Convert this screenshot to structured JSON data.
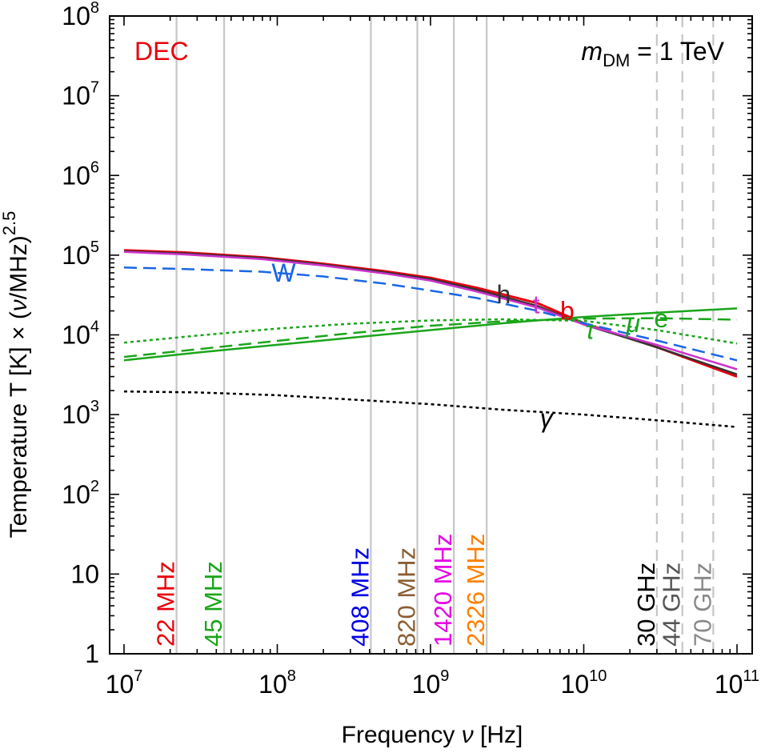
{
  "chart_data": {
    "type": "line",
    "xlabel": {
      "main": "Frequency ",
      "italic": "ν",
      "unit": " [Hz]"
    },
    "ylabel": {
      "prefix": "Temperature T [K] × (",
      "italic": "ν",
      "suffix": "/MHz)",
      "sup": "2.5"
    },
    "x_scale": "log",
    "y_scale": "log",
    "xlim": [
      10000000,
      100000000000
    ],
    "ylim": [
      1,
      100000000
    ],
    "x_ticks": [
      {
        "value": 10000000,
        "base": "10",
        "exp": "7"
      },
      {
        "value": 100000000,
        "base": "10",
        "exp": "8"
      },
      {
        "value": 1000000000,
        "base": "10",
        "exp": "9"
      },
      {
        "value": 10000000000,
        "base": "10",
        "exp": "10"
      },
      {
        "value": 100000000000,
        "base": "10",
        "exp": "11"
      }
    ],
    "y_ticks": [
      {
        "value": 1,
        "base": "1",
        "exp": ""
      },
      {
        "value": 10,
        "base": "10",
        "exp": ""
      },
      {
        "value": 100,
        "base": "10",
        "exp": "2"
      },
      {
        "value": 1000,
        "base": "10",
        "exp": "3"
      },
      {
        "value": 10000,
        "base": "10",
        "exp": "4"
      },
      {
        "value": 100000,
        "base": "10",
        "exp": "5"
      },
      {
        "value": 1000000,
        "base": "10",
        "exp": "6"
      },
      {
        "value": 10000000,
        "base": "10",
        "exp": "7"
      },
      {
        "value": 100000000,
        "base": "10",
        "exp": "8"
      }
    ],
    "corner_left": "DEC",
    "corner_left_color": "#e8000b",
    "corner_right": {
      "italic": "m",
      "sub": "DM",
      "rest": " = 1 TeV"
    },
    "frequency_markers": [
      {
        "freq": 22000000,
        "label": "22 MHz",
        "color": "#e8000b",
        "style": "solid"
      },
      {
        "freq": 45000000,
        "label": "45 MHz",
        "color": "#1aa51a",
        "style": "solid"
      },
      {
        "freq": 408000000,
        "label": "408 MHz",
        "color": "#0000e6",
        "style": "solid"
      },
      {
        "freq": 820000000,
        "label": "820 MHz",
        "color": "#8b5e34",
        "style": "solid"
      },
      {
        "freq": 1420000000,
        "label": "1420 MHz",
        "color": "#e600e6",
        "style": "solid"
      },
      {
        "freq": 2326000000,
        "label": "2326 MHz",
        "color": "#ff7f00",
        "style": "solid"
      },
      {
        "freq": 30000000000,
        "label": "30 GHz",
        "color": "#000000",
        "style": "dashed"
      },
      {
        "freq": 44000000000,
        "label": "44 GHz",
        "color": "#555555",
        "style": "dashed"
      },
      {
        "freq": 70000000000,
        "label": "70 GHz",
        "color": "#888888",
        "style": "dashed"
      }
    ],
    "series": [
      {
        "name": "b",
        "color": "#e8000b",
        "dash": "solid",
        "width": 3,
        "x": [
          10000000,
          25000000,
          80000000,
          200000000,
          500000000,
          1000000000,
          2000000000,
          5000000000,
          10000000000,
          30000000000,
          100000000000
        ],
        "y": [
          115000,
          108000,
          94000,
          78000,
          63000,
          52000,
          39000,
          25000,
          14000,
          7000,
          3000
        ]
      },
      {
        "name": "h",
        "color": "#333333",
        "dash": "solid",
        "width": 2.5,
        "x": [
          10000000,
          25000000,
          80000000,
          200000000,
          500000000,
          1000000000,
          2000000000,
          5000000000,
          10000000000,
          30000000000,
          100000000000
        ],
        "y": [
          112000,
          105000,
          92000,
          76000,
          61000,
          50000,
          37000,
          23000,
          13500,
          7000,
          3200
        ]
      },
      {
        "name": "t",
        "color": "#cc33cc",
        "dash": "solid",
        "width": 2.5,
        "x": [
          10000000,
          25000000,
          80000000,
          200000000,
          500000000,
          1000000000,
          2000000000,
          5000000000,
          10000000000,
          30000000000,
          100000000000
        ],
        "y": [
          110000,
          102000,
          89000,
          74000,
          59000,
          48000,
          35000,
          22000,
          13500,
          7500,
          3700
        ]
      },
      {
        "name": "W",
        "color": "#1a66e6",
        "dash": "long",
        "width": 2.5,
        "x": [
          10000000,
          25000000,
          80000000,
          200000000,
          500000000,
          1000000000,
          2000000000,
          5000000000,
          10000000000,
          30000000000,
          100000000000
        ],
        "y": [
          70000,
          67000,
          62000,
          54000,
          44000,
          36000,
          29000,
          20000,
          14000,
          8500,
          4800
        ]
      },
      {
        "name": "e",
        "color": "#1aa51a",
        "dash": "solid",
        "width": 2.5,
        "x": [
          10000000,
          30000000,
          100000000,
          300000000,
          1000000000,
          3000000000,
          5000000000,
          10000000000,
          30000000000,
          100000000000
        ],
        "y": [
          4800,
          6000,
          7500,
          9200,
          11500,
          14000,
          15200,
          16800,
          19000,
          21500
        ]
      },
      {
        "name": "μ",
        "color": "#1aa51a",
        "dash": "long",
        "width": 2.5,
        "x": [
          10000000,
          30000000,
          100000000,
          300000000,
          1000000000,
          3000000000,
          5000000000,
          10000000000,
          30000000000,
          100000000000
        ],
        "y": [
          5300,
          6600,
          8400,
          10500,
          13000,
          14800,
          15300,
          16000,
          16200,
          15500
        ]
      },
      {
        "name": "τ",
        "color": "#1aa51a",
        "dash": "dotted",
        "width": 2.5,
        "x": [
          10000000,
          30000000,
          100000000,
          300000000,
          1000000000,
          3000000000,
          10000000000,
          30000000000,
          100000000000
        ],
        "y": [
          8000,
          9800,
          12000,
          13800,
          15200,
          15700,
          15000,
          11500,
          7800
        ]
      },
      {
        "name": "γ",
        "color": "#000000",
        "dash": "dotted",
        "width": 2.5,
        "x": [
          10000000,
          30000000,
          100000000,
          300000000,
          1000000000,
          3000000000,
          10000000000,
          30000000000,
          100000000000
        ],
        "y": [
          1950,
          1900,
          1750,
          1550,
          1350,
          1150,
          1000,
          850,
          700
        ]
      }
    ],
    "curve_labels": [
      {
        "text": "W",
        "color": "#1a66e6",
        "x": 110000000,
        "y": 60000
      },
      {
        "text": "h",
        "color": "#333333",
        "x": 3000000000,
        "y": 32000
      },
      {
        "text": "t",
        "color": "#cc33cc",
        "x": 4900000000,
        "y": 24000
      },
      {
        "text": "b",
        "color": "#e8000b",
        "x": 7800000000,
        "y": 20000
      },
      {
        "text": "τ",
        "color": "#1aa51a",
        "x": 11000000000,
        "y": 11500
      },
      {
        "text": "μ",
        "color": "#1aa51a",
        "x": 21000000000,
        "y": 14000
      },
      {
        "text": "e",
        "color": "#1aa51a",
        "x": 32000000000,
        "y": 16000
      },
      {
        "text": "γ",
        "color": "#000000",
        "x": 5700000000,
        "y": 900
      }
    ]
  }
}
